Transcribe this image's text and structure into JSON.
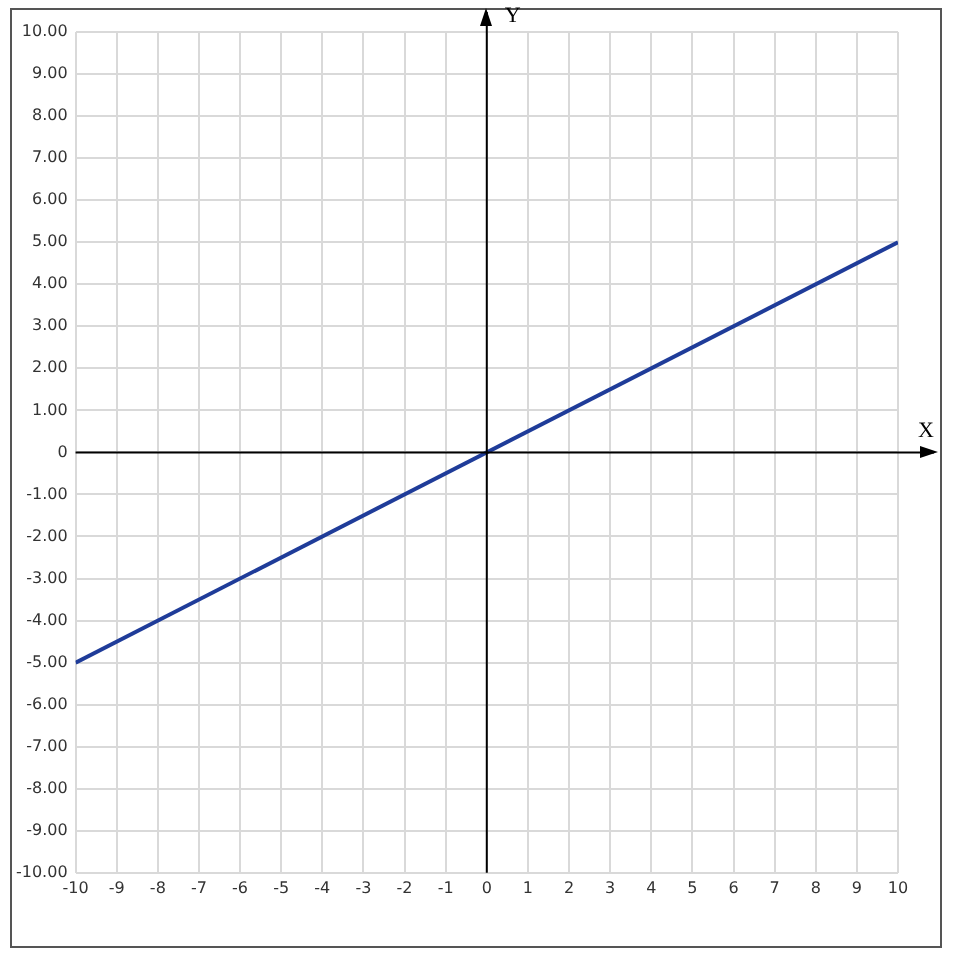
{
  "chart_data": {
    "type": "line",
    "xlabel": "X",
    "ylabel": "Y",
    "x": [
      -10,
      10
    ],
    "series": [
      {
        "color": "#1f3c99",
        "values": [
          -5,
          5
        ]
      }
    ],
    "xlim": [
      -10,
      10
    ],
    "ylim": [
      -10,
      10
    ],
    "xticks": [
      -10,
      -9,
      -8,
      -7,
      -6,
      -5,
      -4,
      -3,
      -2,
      -1,
      0,
      1,
      2,
      3,
      4,
      5,
      6,
      7,
      8,
      9,
      10
    ],
    "yticks": [
      {
        "value": 10,
        "label": "10.00"
      },
      {
        "value": 9,
        "label": "9.00"
      },
      {
        "value": 8,
        "label": "8.00"
      },
      {
        "value": 7,
        "label": "7.00"
      },
      {
        "value": 6,
        "label": "6.00"
      },
      {
        "value": 5,
        "label": "5.00"
      },
      {
        "value": 4,
        "label": "4.00"
      },
      {
        "value": 3,
        "label": "3.00"
      },
      {
        "value": 2,
        "label": "2.00"
      },
      {
        "value": 1,
        "label": "1.00"
      },
      0,
      {
        "value": -1,
        "label": "-1.00"
      },
      {
        "value": -2,
        "label": "-2.00"
      },
      {
        "value": -3,
        "label": "-3.00"
      },
      {
        "value": -4,
        "label": "-4.00"
      },
      {
        "value": -5,
        "label": "-5.00"
      },
      {
        "value": -6,
        "label": "-6.00"
      },
      {
        "value": -7,
        "label": "-7.00"
      },
      {
        "value": -8,
        "label": "-8.00"
      },
      {
        "value": -9,
        "label": "-9.00"
      },
      {
        "value": -10,
        "label": "-10.00"
      }
    ],
    "grid": true,
    "marker": "none",
    "line_style": "solid"
  }
}
